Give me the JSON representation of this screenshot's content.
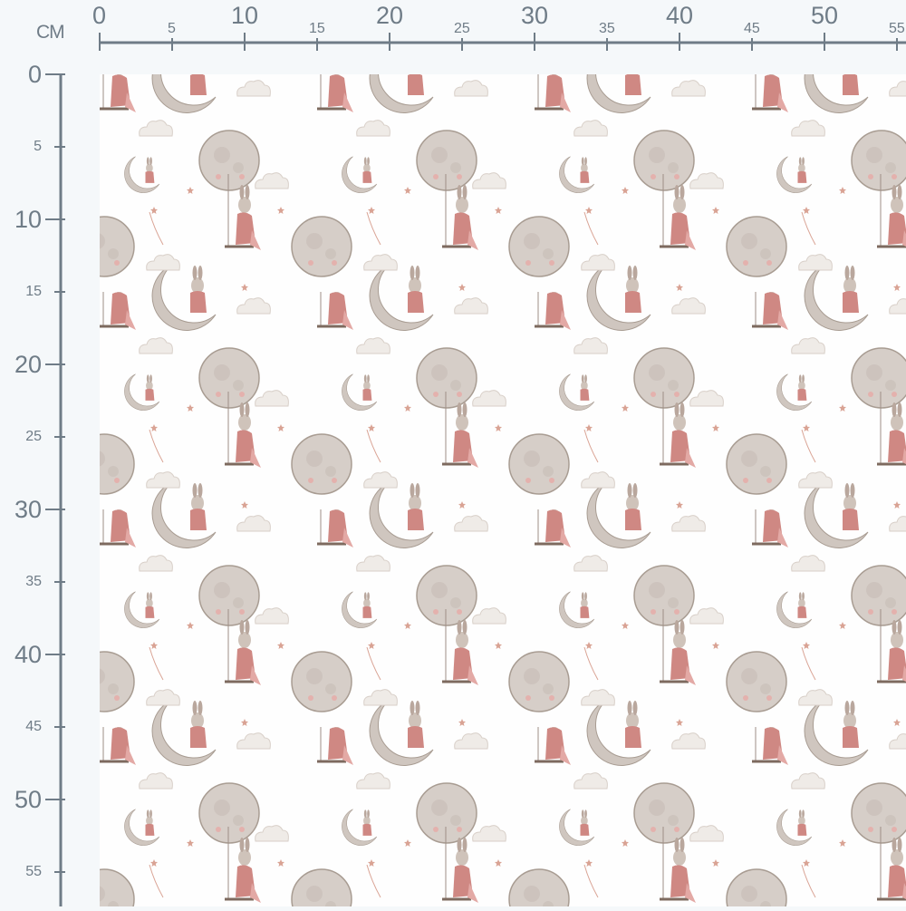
{
  "ruler": {
    "unit": "CM",
    "color": "#6f7c87",
    "horizontal_labels": [
      0,
      5,
      10,
      15,
      20,
      25,
      30,
      35,
      40,
      45,
      50,
      55
    ],
    "vertical_labels": [
      0,
      5,
      10,
      15,
      20,
      25,
      30,
      35,
      40,
      45,
      50,
      55
    ]
  },
  "fabric": {
    "description_colors": {
      "moon": "#cfc6bf",
      "dress": "#c97c78",
      "background": "#fefefe"
    },
    "motifs": [
      "moon-balloon",
      "bunny-on-swing",
      "crescent-moon-with-bunny",
      "small-crescent-moon",
      "cloud",
      "shooting-star",
      "star"
    ]
  }
}
